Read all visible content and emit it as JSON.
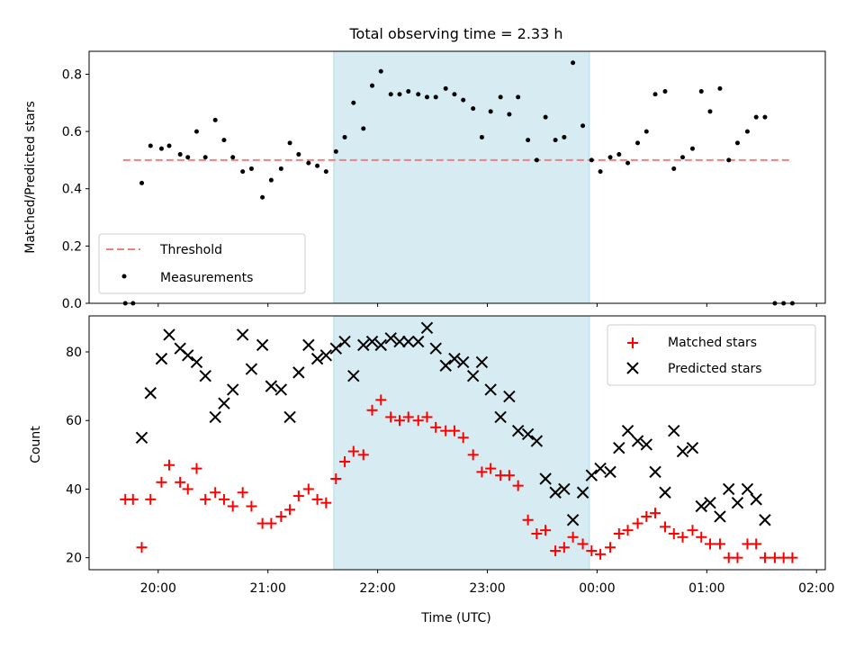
{
  "title": "Total observing time = 2.33 h",
  "chart_data": [
    {
      "type": "scatter",
      "panel": "top",
      "ylabel": "Matched/Predicted stars",
      "xlabel": "",
      "ylim": [
        0,
        0.88
      ],
      "yticks": [
        0.0,
        0.2,
        0.4,
        0.6,
        0.8
      ],
      "ytick_labels": [
        "0.0",
        "0.2",
        "0.4",
        "0.6",
        "0.8"
      ],
      "xlim": [
        -0.63,
        6.08
      ],
      "shaded_span": [
        1.6,
        3.93
      ],
      "legend_placement": "lower-left",
      "threshold": {
        "name": "Threshold",
        "value": 0.5,
        "x_range": [
          -0.32,
          5.75
        ],
        "color": "#f08080"
      },
      "series": [
        {
          "name": "Measurements",
          "color": "#000000",
          "x": [
            -0.3,
            -0.23,
            -0.15,
            -0.07,
            0.03,
            0.1,
            0.2,
            0.27,
            0.35,
            0.43,
            0.52,
            0.6,
            0.68,
            0.77,
            0.85,
            0.95,
            1.03,
            1.12,
            1.2,
            1.28,
            1.37,
            1.45,
            1.53,
            1.62,
            1.7,
            1.78,
            1.87,
            1.95,
            2.03,
            2.12,
            2.2,
            2.28,
            2.37,
            2.45,
            2.53,
            2.62,
            2.7,
            2.78,
            2.87,
            2.95,
            3.03,
            3.12,
            3.2,
            3.28,
            3.37,
            3.45,
            3.53,
            3.62,
            3.7,
            3.78,
            3.87,
            3.95,
            4.03,
            4.12,
            4.2,
            4.28,
            4.37,
            4.45,
            4.53,
            4.62,
            4.7,
            4.78,
            4.87,
            4.95,
            5.03,
            5.12,
            5.2,
            5.28,
            5.37,
            5.45,
            5.53,
            5.62,
            5.7,
            5.78
          ],
          "y": [
            0.0,
            0.0,
            0.42,
            0.55,
            0.54,
            0.55,
            0.52,
            0.51,
            0.6,
            0.51,
            0.64,
            0.57,
            0.51,
            0.46,
            0.47,
            0.37,
            0.43,
            0.47,
            0.56,
            0.52,
            0.49,
            0.48,
            0.46,
            0.53,
            0.58,
            0.7,
            0.61,
            0.76,
            0.81,
            0.73,
            0.73,
            0.74,
            0.73,
            0.72,
            0.72,
            0.75,
            0.73,
            0.71,
            0.68,
            0.58,
            0.67,
            0.72,
            0.66,
            0.72,
            0.57,
            0.5,
            0.65,
            0.57,
            0.58,
            0.84,
            0.62,
            0.5,
            0.46,
            0.51,
            0.52,
            0.49,
            0.56,
            0.6,
            0.73,
            0.74,
            0.47,
            0.51,
            0.54,
            0.74,
            0.67,
            0.75,
            0.5,
            0.56,
            0.6,
            0.65,
            0.65,
            0.0,
            0.0,
            0.0
          ]
        }
      ]
    },
    {
      "type": "scatter",
      "panel": "bottom",
      "ylabel": "Count",
      "xlabel": "Time (UTC)",
      "ylim": [
        16.5,
        90.5
      ],
      "yticks": [
        20,
        40,
        60,
        80
      ],
      "ytick_labels": [
        "20",
        "40",
        "60",
        "80"
      ],
      "xlim": [
        -0.63,
        6.08
      ],
      "xticks": [
        0,
        1,
        2,
        3,
        4,
        5,
        6
      ],
      "xtick_labels": [
        "20:00",
        "21:00",
        "22:00",
        "23:00",
        "00:00",
        "01:00",
        "02:00"
      ],
      "shaded_span": [
        1.6,
        3.93
      ],
      "legend_placement": "upper-right",
      "series": [
        {
          "name": "Matched stars",
          "marker": "+",
          "color": "#ff0000",
          "x": [
            -0.3,
            -0.23,
            -0.15,
            -0.07,
            0.03,
            0.1,
            0.2,
            0.27,
            0.35,
            0.43,
            0.52,
            0.6,
            0.68,
            0.77,
            0.85,
            0.95,
            1.03,
            1.12,
            1.2,
            1.28,
            1.37,
            1.45,
            1.53,
            1.62,
            1.7,
            1.78,
            1.87,
            1.95,
            2.03,
            2.12,
            2.2,
            2.28,
            2.37,
            2.45,
            2.53,
            2.62,
            2.7,
            2.78,
            2.87,
            2.95,
            3.03,
            3.12,
            3.2,
            3.28,
            3.37,
            3.45,
            3.53,
            3.62,
            3.7,
            3.78,
            3.87,
            3.95,
            4.03,
            4.12,
            4.2,
            4.28,
            4.37,
            4.45,
            4.53,
            4.62,
            4.7,
            4.78,
            4.87,
            4.95,
            5.03,
            5.12,
            5.2,
            5.28,
            5.37,
            5.45,
            5.53,
            5.62,
            5.7,
            5.78
          ],
          "y": [
            37,
            37,
            23,
            37,
            42,
            47,
            42,
            40,
            46,
            37,
            39,
            37,
            35,
            39,
            35,
            30,
            30,
            32,
            34,
            38,
            40,
            37,
            36,
            43,
            48,
            51,
            50,
            63,
            66,
            61,
            60,
            61,
            60,
            61,
            58,
            57,
            57,
            55,
            50,
            45,
            46,
            44,
            44,
            41,
            31,
            27,
            28,
            22,
            23,
            26,
            24,
            22,
            21,
            23,
            27,
            28,
            30,
            32,
            33,
            29,
            27,
            26,
            28,
            26,
            24,
            24,
            20,
            20,
            24,
            24,
            20,
            20,
            20,
            20
          ]
        },
        {
          "name": "Predicted stars",
          "marker": "x",
          "color": "#000000",
          "x": [
            -0.15,
            -0.07,
            0.03,
            0.1,
            0.2,
            0.27,
            0.35,
            0.43,
            0.52,
            0.6,
            0.68,
            0.77,
            0.85,
            0.95,
            1.03,
            1.12,
            1.2,
            1.28,
            1.37,
            1.45,
            1.53,
            1.62,
            1.7,
            1.78,
            1.87,
            1.95,
            2.03,
            2.12,
            2.2,
            2.28,
            2.37,
            2.45,
            2.53,
            2.62,
            2.7,
            2.78,
            2.87,
            2.95,
            3.03,
            3.12,
            3.2,
            3.28,
            3.37,
            3.45,
            3.53,
            3.62,
            3.7,
            3.78,
            3.87,
            3.95,
            4.03,
            4.12,
            4.2,
            4.28,
            4.37,
            4.45,
            4.53,
            4.62,
            4.7,
            4.78,
            4.87,
            4.95,
            5.03,
            5.12,
            5.2,
            5.28,
            5.37,
            5.45,
            5.53
          ],
          "y": [
            55,
            68,
            78,
            85,
            81,
            79,
            77,
            73,
            61,
            65,
            69,
            85,
            75,
            82,
            70,
            69,
            61,
            74,
            82,
            78,
            79,
            81,
            83,
            73,
            82,
            83,
            82,
            84,
            83,
            83,
            83,
            87,
            81,
            76,
            78,
            77,
            73,
            77,
            69,
            61,
            67,
            57,
            56,
            54,
            43,
            39,
            40,
            31,
            39,
            44,
            46,
            45,
            52,
            57,
            54,
            53,
            45,
            39,
            57,
            51,
            52,
            35,
            36,
            32,
            40,
            36,
            40,
            37,
            31
          ]
        }
      ]
    }
  ]
}
